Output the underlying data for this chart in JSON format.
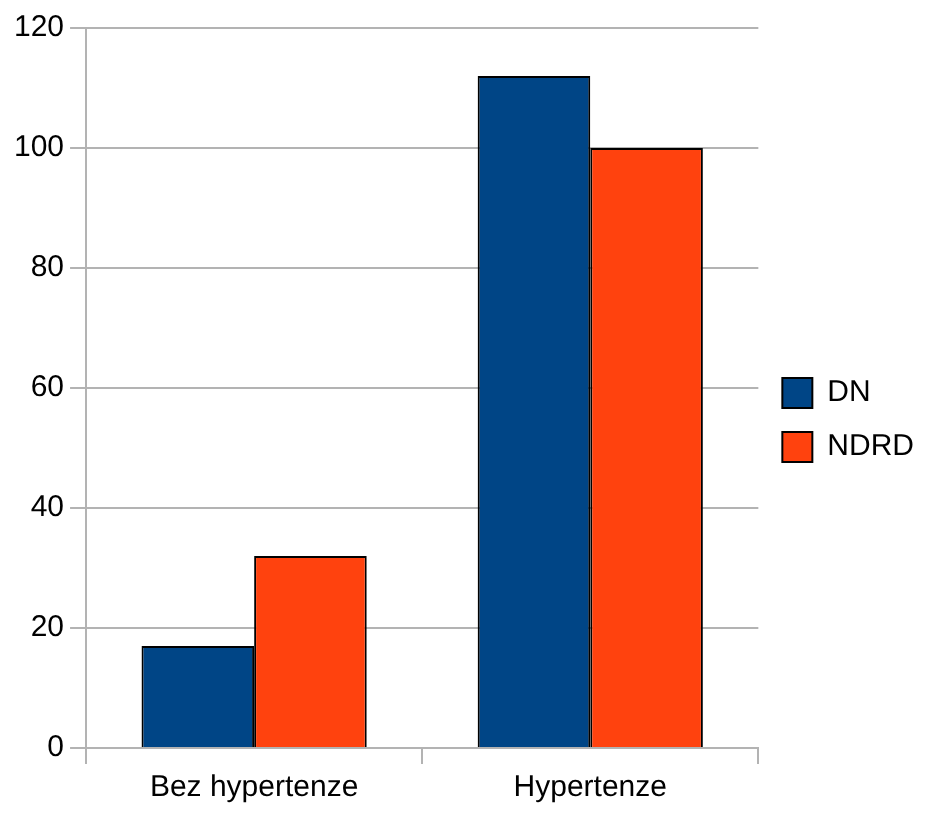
{
  "chart_data": {
    "type": "bar",
    "categories": [
      "Bez hypertenze",
      "Hypertenze"
    ],
    "series": [
      {
        "name": "DN",
        "color": "#004586",
        "values": [
          17,
          112
        ]
      },
      {
        "name": "NDRD",
        "color": "#ff420e",
        "values": [
          32,
          100
        ]
      }
    ],
    "ylim": [
      0,
      120
    ],
    "yticks": [
      0,
      20,
      40,
      60,
      80,
      100,
      120
    ],
    "grid": "y",
    "legend": "right"
  }
}
